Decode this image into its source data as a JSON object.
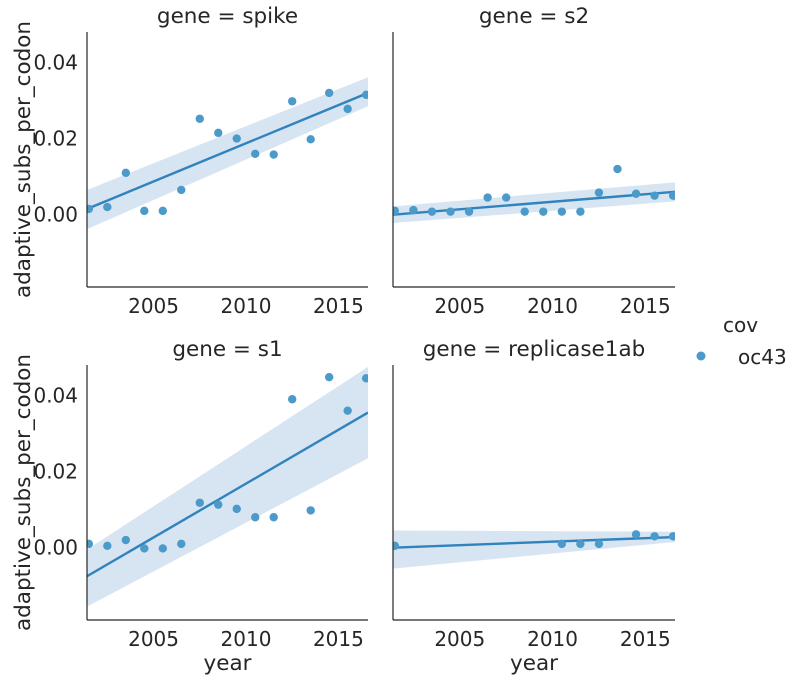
{
  "legend": {
    "title": "cov",
    "entries": [
      {
        "label": "oc43",
        "color": "#4c9ac9"
      }
    ],
    "placement": "right"
  },
  "colors": {
    "point": "#4c9ac9",
    "line": "#3183be",
    "band": "#c9dcef",
    "axis": "#262626"
  },
  "chart_data": [
    {
      "type": "scatter",
      "title": "gene = spike",
      "xlabel": "",
      "ylabel": "adaptive_subs_per_codon",
      "xlim": [
        2001.4,
        2016.6
      ],
      "ylim": [
        -0.019,
        0.048
      ],
      "xticks": [
        2005,
        2010,
        2015
      ],
      "yticks": [
        0.0,
        0.02,
        0.04
      ],
      "grid": false,
      "series": [
        {
          "x": [
            2001.5,
            2002.5,
            2003.5,
            2004.5,
            2005.5,
            2006.5,
            2007.5,
            2008.5,
            2009.5,
            2010.5,
            2011.5,
            2012.5,
            2013.5,
            2014.5,
            2015.5,
            2016.5
          ],
          "y": [
            0.0015,
            0.002,
            0.011,
            0.001,
            0.001,
            0.0065,
            0.0252,
            0.0215,
            0.02,
            0.016,
            0.0158,
            0.0298,
            0.0198,
            0.032,
            0.0278,
            0.0315
          ],
          "fit": {
            "x": [
              2001.4,
              2016.6
            ],
            "y": [
              0.0015,
              0.032
            ],
            "ci_low": [
              -0.0038,
              0.0285
            ],
            "ci_high": [
              0.0065,
              0.0361
            ]
          }
        }
      ]
    },
    {
      "type": "scatter",
      "title": "gene = s2",
      "xlabel": "",
      "ylabel": "",
      "xlim": [
        2001.4,
        2016.6
      ],
      "ylim": [
        -0.019,
        0.048
      ],
      "xticks": [
        2005,
        2010,
        2015
      ],
      "yticks": [],
      "grid": false,
      "series": [
        {
          "x": [
            2001.5,
            2002.5,
            2003.5,
            2004.5,
            2005.5,
            2006.5,
            2007.5,
            2008.5,
            2009.5,
            2010.5,
            2011.5,
            2012.5,
            2013.5,
            2014.5,
            2015.5,
            2016.5
          ],
          "y": [
            0.001,
            0.0012,
            0.0008,
            0.0008,
            0.0008,
            0.0045,
            0.0045,
            0.0008,
            0.0008,
            0.0008,
            0.0008,
            0.0058,
            0.012,
            0.0055,
            0.005,
            0.005
          ],
          "fit": {
            "x": [
              2001.4,
              2016.6
            ],
            "y": [
              0.0,
              0.006
            ],
            "ci_low": [
              -0.0022,
              0.0035
            ],
            "ci_high": [
              0.0022,
              0.0085
            ]
          }
        }
      ]
    },
    {
      "type": "scatter",
      "title": "gene = s1",
      "xlabel": "year",
      "ylabel": "adaptive_subs_per_codon",
      "xlim": [
        2001.4,
        2016.6
      ],
      "ylim": [
        -0.019,
        0.048
      ],
      "xticks": [
        2005,
        2010,
        2015
      ],
      "yticks": [
        0.0,
        0.02,
        0.04
      ],
      "grid": false,
      "series": [
        {
          "x": [
            2001.5,
            2002.5,
            2003.5,
            2004.5,
            2005.5,
            2006.5,
            2007.5,
            2008.5,
            2009.5,
            2010.5,
            2011.5,
            2012.5,
            2013.5,
            2014.5,
            2015.5,
            2016.5
          ],
          "y": [
            0.001,
            0.0005,
            0.002,
            -0.0002,
            -0.0002,
            0.001,
            0.0118,
            0.0113,
            0.0102,
            0.008,
            0.008,
            0.039,
            0.0098,
            0.0448,
            0.036,
            0.0445
          ],
          "fit": {
            "x": [
              2001.4,
              2016.6
            ],
            "y": [
              -0.0075,
              0.0355
            ],
            "ci_low": [
              -0.0155,
              0.0235
            ],
            "ci_high": [
              -0.0005,
              0.0475
            ]
          }
        }
      ]
    },
    {
      "type": "scatter",
      "title": "gene = replicase1ab",
      "xlabel": "year",
      "ylabel": "",
      "xlim": [
        2001.4,
        2016.6
      ],
      "ylim": [
        -0.019,
        0.048
      ],
      "xticks": [
        2005,
        2010,
        2015
      ],
      "yticks": [],
      "grid": false,
      "series": [
        {
          "x": [
            2001.5,
            2010.5,
            2011.5,
            2012.5,
            2014.5,
            2015.5,
            2016.5
          ],
          "y": [
            0.0005,
            0.001,
            0.001,
            0.001,
            0.0035,
            0.003,
            0.003
          ],
          "fit": {
            "x": [
              2001.4,
              2016.6
            ],
            "y": [
              0.0,
              0.0028
            ],
            "ci_low": [
              -0.0055,
              0.0015
            ],
            "ci_high": [
              0.0045,
              0.0042
            ]
          }
        }
      ]
    }
  ]
}
